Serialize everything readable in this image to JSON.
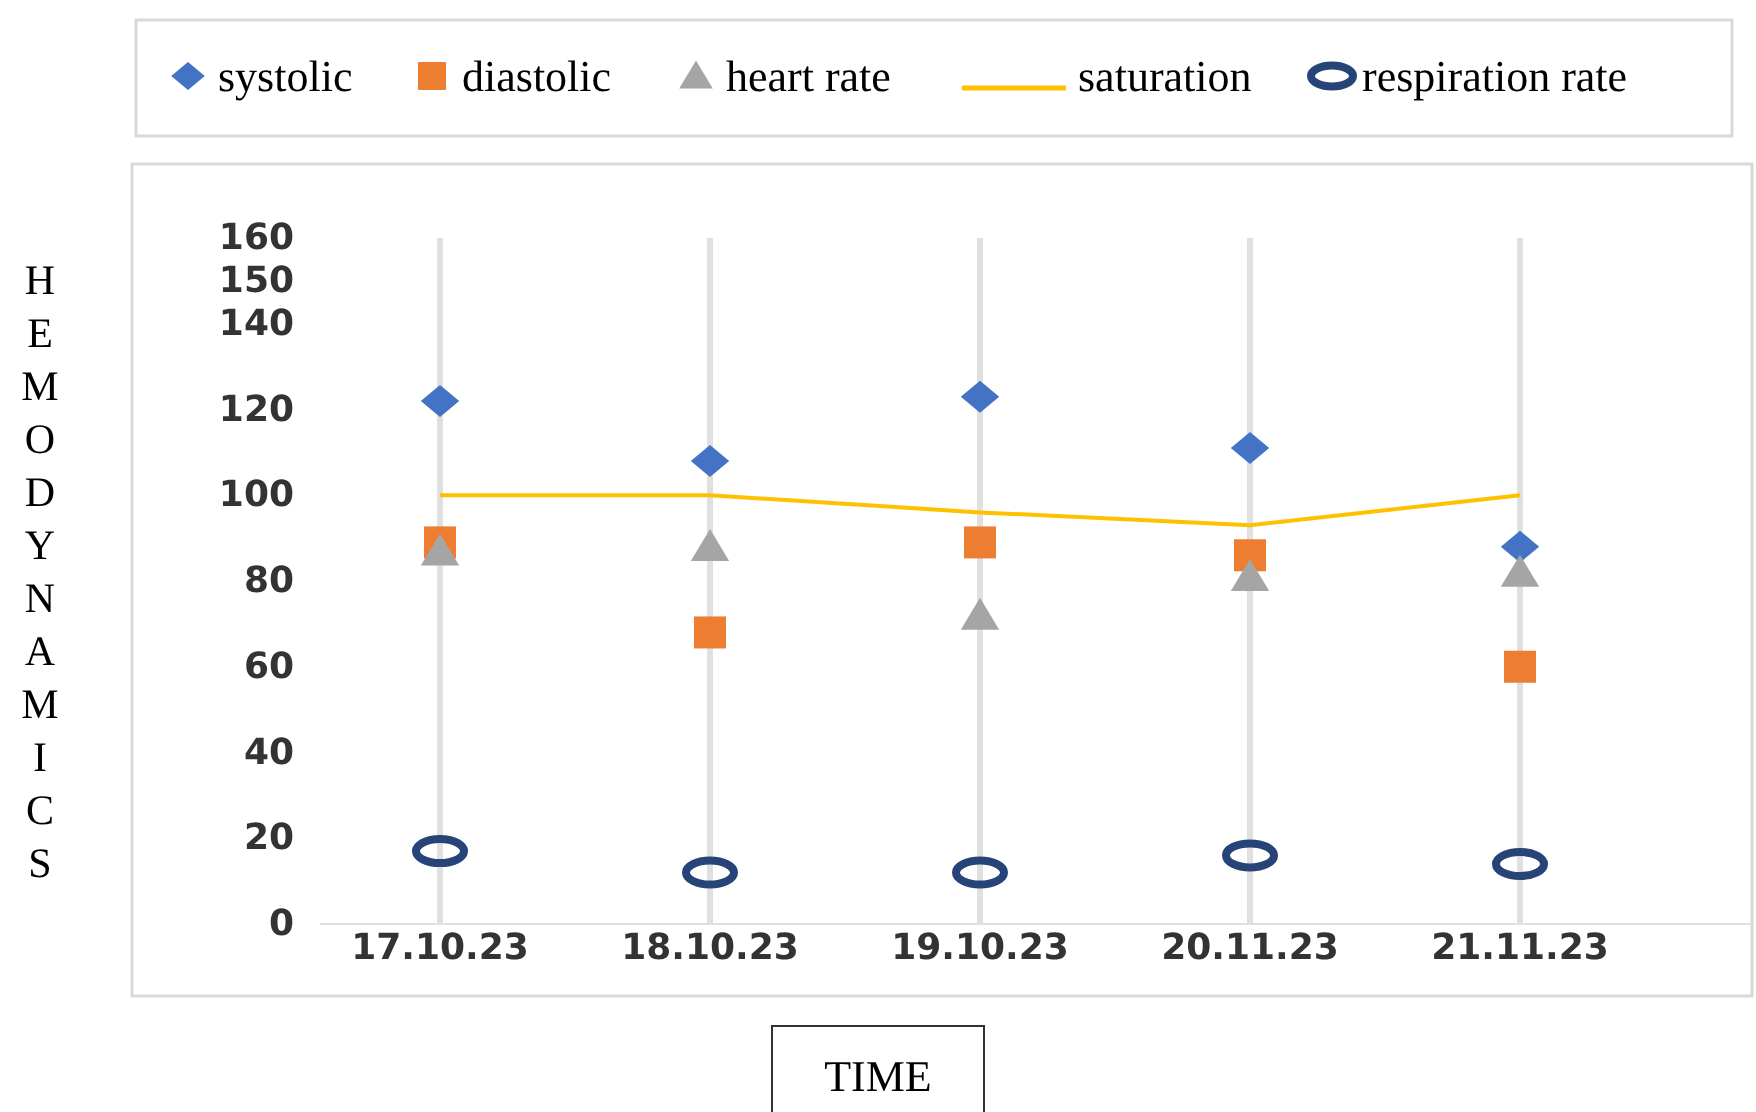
{
  "chart_data": {
    "type": "scatter",
    "xlabel": "TIME",
    "ylabel": "HEMODYNAMICS",
    "categories": [
      "17.10.23",
      "18.10.23",
      "19.10.23",
      "20.11.23",
      "21.11.23"
    ],
    "series": [
      {
        "name": "systolic",
        "marker": "diamond",
        "color": "#4472c4",
        "values": [
          122,
          108,
          123,
          111,
          88
        ]
      },
      {
        "name": "diastolic",
        "marker": "square",
        "color": "#ed7d31",
        "values": [
          89,
          68,
          89,
          86,
          60
        ]
      },
      {
        "name": "heart rate",
        "marker": "triangle",
        "color": "#a5a5a5",
        "values": [
          87,
          88,
          72,
          81,
          82
        ]
      },
      {
        "name": "saturation",
        "type": "line",
        "marker": "none",
        "line_style": "solid",
        "color": "#ffc000",
        "values": [
          100,
          100,
          96,
          93,
          100
        ]
      },
      {
        "name": "respiration rate",
        "marker": "circle",
        "color": "#264478",
        "values": [
          17,
          12,
          12,
          16,
          14
        ]
      }
    ],
    "ylim": [
      0,
      160
    ],
    "yticks": [
      0,
      20,
      40,
      60,
      80,
      100,
      120,
      140,
      150,
      160
    ],
    "grid": "x",
    "legend": "top"
  }
}
